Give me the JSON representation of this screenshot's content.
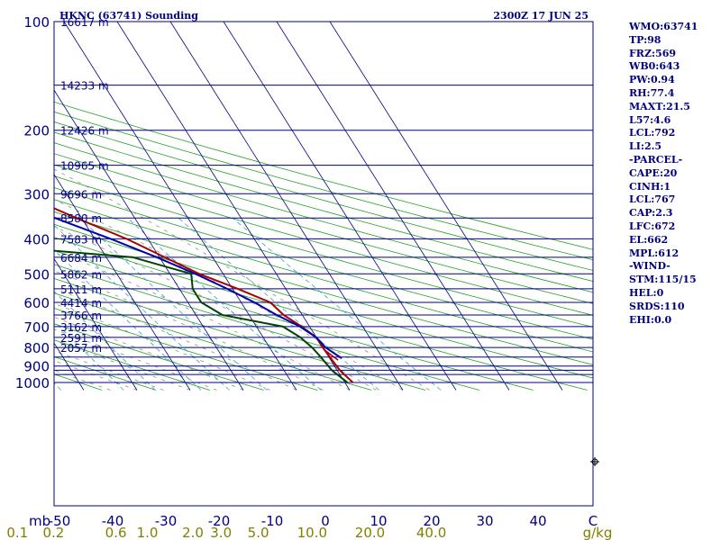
{
  "header": {
    "title": "HKNC (63741) Sounding",
    "time": "2300Z 17 JUN 25"
  },
  "indices": [
    "WMO:63741",
    "TP:98",
    "FRZ:569",
    "WB0:643",
    "PW:0.94",
    "RH:77.4",
    "MAXT:21.5",
    "L57:4.6",
    "LCL:792",
    "LI:2.5",
    "-PARCEL-",
    "CAPE:20",
    "CINH:1",
    "LCL:767",
    "CAP:2.3",
    "LFC:672",
    "EL:662",
    "MPL:612",
    "-WIND-",
    "STM:115/15",
    "HEL:0",
    "SRDS:110",
    "EHI:0.0"
  ],
  "chart_data": {
    "type": "line",
    "subtype": "skew-T log-P sounding",
    "pressure_axis": {
      "unit_label": "mb",
      "scale": "log",
      "range_hPa": [
        100,
        1050
      ],
      "tick_labels": [
        "100",
        "200",
        "300",
        "400",
        "500",
        "600",
        "700",
        "800",
        "900",
        "1000"
      ]
    },
    "isobars_hPa": [
      100,
      150,
      200,
      250,
      300,
      350,
      400,
      450,
      500,
      550,
      600,
      650,
      700,
      750,
      800,
      850,
      900,
      925,
      950,
      1000
    ],
    "height_labels": [
      {
        "p": 100,
        "label": "16617 m"
      },
      {
        "p": 150,
        "label": "14233 m"
      },
      {
        "p": 200,
        "label": "12426 m"
      },
      {
        "p": 250,
        "label": "10965 m"
      },
      {
        "p": 300,
        "label": "9696 m"
      },
      {
        "p": 350,
        "label": "8580 m"
      },
      {
        "p": 400,
        "label": "7583 m"
      },
      {
        "p": 450,
        "label": "6684 m"
      },
      {
        "p": 500,
        "label": "5862 m"
      },
      {
        "p": 550,
        "label": "5111 m"
      },
      {
        "p": 600,
        "label": "4414 m"
      },
      {
        "p": 650,
        "label": "3766 m"
      },
      {
        "p": 700,
        "label": "3162 m"
      },
      {
        "p": 750,
        "label": "2591 m"
      },
      {
        "p": 800,
        "label": "2057 m"
      }
    ],
    "temperature_axis": {
      "unit_label": "C",
      "range_C_at_bottom": [
        -50,
        50
      ],
      "tick_values": [
        -50,
        -40,
        -30,
        -20,
        -10,
        0,
        10,
        20,
        30,
        40
      ],
      "tick_labels": [
        "-50",
        "-40",
        "-30",
        "-20",
        "-10",
        "0",
        "10",
        "20",
        "30",
        "40"
      ]
    },
    "mixing_ratio_axis": {
      "unit_label": "g/kg",
      "values": [
        0.1,
        0.2,
        0.6,
        1.0,
        2.0,
        3.0,
        5.0,
        10.0,
        20.0,
        40.0
      ],
      "labels": [
        "0.1",
        "0.2",
        "0.6",
        "1.0",
        "2.0",
        "3.0",
        "5.0",
        "10.0",
        "20.0",
        "40.0"
      ]
    },
    "series": [
      {
        "kind": "temperature",
        "color": "#aa0000",
        "points": [
          {
            "p": 1000,
            "t": 21.5
          },
          {
            "p": 925,
            "t": 20.5
          },
          {
            "p": 850,
            "t": 20.2
          },
          {
            "p": 800,
            "t": 20.0
          },
          {
            "p": 750,
            "t": 20.0
          },
          {
            "p": 700,
            "t": 18.5
          },
          {
            "p": 650,
            "t": 16.5
          },
          {
            "p": 600,
            "t": 15.5
          },
          {
            "p": 550,
            "t": 11.0
          },
          {
            "p": 500,
            "t": 5.5
          },
          {
            "p": 450,
            "t": 1.0
          },
          {
            "p": 400,
            "t": -4.0
          },
          {
            "p": 350,
            "t": -11.0
          },
          {
            "p": 300,
            "t": -18.5
          },
          {
            "p": 250,
            "t": -29.0
          },
          {
            "p": 200,
            "t": -40.5
          },
          {
            "p": 170,
            "t": -48.5
          },
          {
            "p": 150,
            "t": -55.5
          },
          {
            "p": 130,
            "t": -65.0
          },
          {
            "p": 110,
            "t": -73.0
          },
          {
            "p": 100,
            "t": -79.0
          }
        ]
      },
      {
        "kind": "dewpoint",
        "color": "#004400",
        "points": [
          {
            "p": 1000,
            "t": 20.5
          },
          {
            "p": 925,
            "t": 19.0
          },
          {
            "p": 850,
            "t": 18.5
          },
          {
            "p": 800,
            "t": 18.0
          },
          {
            "p": 750,
            "t": 17.0
          },
          {
            "p": 700,
            "t": 15.0
          },
          {
            "p": 650,
            "t": 5.0
          },
          {
            "p": 600,
            "t": 2.5
          },
          {
            "p": 550,
            "t": 2.5
          },
          {
            "p": 500,
            "t": 4.0
          },
          {
            "p": 450,
            "t": -5.0
          },
          {
            "p": 420,
            "t": -28.0
          },
          {
            "p": 350,
            "t": -48.0
          },
          {
            "p": 300,
            "t": -50.0
          },
          {
            "p": 250,
            "t": -47.0
          },
          {
            "p": 200,
            "t": -55.0
          },
          {
            "p": 170,
            "t": -66.0
          },
          {
            "p": 150,
            "t": -73.0
          },
          {
            "p": 130,
            "t": -85.0
          },
          {
            "p": 110,
            "t": -97.0
          },
          {
            "p": 100,
            "t": -105.0
          }
        ]
      },
      {
        "kind": "parcel",
        "color": "#0000aa",
        "points": [
          {
            "p": 800,
            "t": 20.5
          },
          {
            "p": 750,
            "t": 20.0
          },
          {
            "p": 700,
            "t": 18.2
          },
          {
            "p": 650,
            "t": 15.2
          },
          {
            "p": 600,
            "t": 12.5
          },
          {
            "p": 550,
            "t": 9.0
          },
          {
            "p": 500,
            "t": 4.8
          },
          {
            "p": 450,
            "t": -0.5
          },
          {
            "p": 400,
            "t": -7.0
          },
          {
            "p": 350,
            "t": -15.0
          },
          {
            "p": 300,
            "t": -24.0
          },
          {
            "p": 250,
            "t": -36.5
          },
          {
            "p": 200,
            "t": -51.0
          },
          {
            "p": 170,
            "t": -61.0
          },
          {
            "p": 150,
            "t": -70.0
          },
          {
            "p": 130,
            "t": -81.0
          },
          {
            "p": 115,
            "t": -90.0
          }
        ]
      }
    ],
    "dry_adiabats_C": [
      -50,
      -40,
      -30,
      -20,
      -10,
      0,
      10,
      20,
      30,
      40,
      50,
      60,
      70,
      80,
      90,
      100,
      110,
      120,
      130,
      140,
      150,
      160,
      170,
      180
    ],
    "moist_adiabats_C": [
      -25,
      -20,
      -15,
      -10,
      -5,
      0,
      5,
      10,
      15,
      20,
      25,
      30,
      35
    ]
  }
}
